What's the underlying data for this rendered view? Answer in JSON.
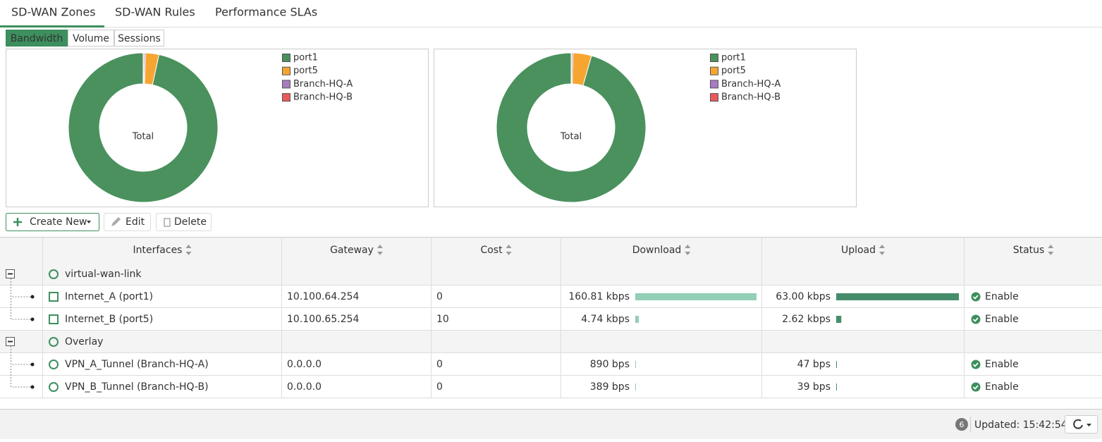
{
  "tabs": [
    "SD-WAN Zones",
    "SD-WAN Rules",
    "Performance SLAs"
  ],
  "subtabs": [
    "Bandwidth",
    "Volume",
    "Sessions"
  ],
  "charts": [
    {
      "type": "donut",
      "center_label": "Total",
      "legend": [
        "port1",
        "port5",
        "Branch-HQ-A",
        "Branch-HQ-B"
      ],
      "colors": [
        "#4a915e",
        "#f7a531",
        "#a77cc2",
        "#e8595c"
      ],
      "values": [
        96.6,
        2.9,
        0.3,
        0.2
      ]
    },
    {
      "type": "donut",
      "center_label": "Total",
      "legend": [
        "port1",
        "port5",
        "Branch-HQ-A",
        "Branch-HQ-B"
      ],
      "colors": [
        "#4a915e",
        "#f7a531",
        "#a77cc2",
        "#e8595c"
      ],
      "values": [
        95.6,
        4.0,
        0.3,
        0.1
      ]
    }
  ],
  "toolbar": [
    "Create New",
    "Edit",
    "Delete"
  ],
  "table": {
    "columns": [
      "Interfaces",
      "Gateway",
      "Cost",
      "Download",
      "Upload",
      "Status"
    ],
    "download_color": "#93cfb4",
    "upload_color": "#468c6b",
    "groups": [
      {
        "name": "virtual-wan-link",
        "members": [
          {
            "interface": "Internet_A (port1)",
            "gateway": "10.100.64.254",
            "cost": 0,
            "download": {
              "value": 160810,
              "label": "160.81 kbps"
            },
            "upload": {
              "value": 63000,
              "label": "63.00 kbps"
            },
            "status": "Enable"
          },
          {
            "interface": "Internet_B (port5)",
            "gateway": "10.100.65.254",
            "cost": 10,
            "download": {
              "value": 4740,
              "label": "4.74 kbps"
            },
            "upload": {
              "value": 2620,
              "label": "2.62 kbps"
            },
            "status": "Enable"
          }
        ]
      },
      {
        "name": "Overlay",
        "members": [
          {
            "interface": "VPN_A_Tunnel (Branch-HQ-A)",
            "gateway": "0.0.0.0",
            "cost": 0,
            "download": {
              "value": 890,
              "label": "890 bps"
            },
            "upload": {
              "value": 47,
              "label": "47 bps"
            },
            "status": "Enable"
          },
          {
            "interface": "VPN_B_Tunnel (Branch-HQ-B)",
            "gateway": "0.0.0.0",
            "cost": 0,
            "download": {
              "value": 389,
              "label": "389 bps"
            },
            "upload": {
              "value": 39,
              "label": "39 bps"
            },
            "status": "Enable"
          }
        ]
      }
    ]
  },
  "footer": {
    "badge": 6,
    "updated": "Updated: 15:42:54"
  }
}
